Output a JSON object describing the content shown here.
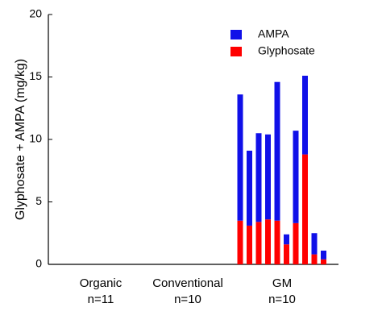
{
  "chart_data": {
    "type": "stacked-bar",
    "y_label": "Glyphosate + AMPA (mg/kg)",
    "groups": [
      {
        "label": "Organic",
        "count": "n=11"
      },
      {
        "label": "Conventional",
        "count": "n=10"
      },
      {
        "label": "GM",
        "count": "n=10"
      }
    ],
    "categories": [
      null,
      null,
      null,
      null,
      null,
      null,
      null,
      null,
      null,
      null
    ],
    "series": [
      {
        "name": "Glyphosate",
        "color": "#ff0000",
        "values": [
          3.5,
          3.1,
          3.4,
          3.6,
          3.5,
          1.6,
          3.3,
          8.8,
          0.8,
          0.4
        ]
      },
      {
        "name": "AMPA",
        "color": "#1010e8",
        "values": [
          10.1,
          6.0,
          7.1,
          6.8,
          11.1,
          0.8,
          7.4,
          6.3,
          1.7,
          0.7
        ]
      }
    ],
    "ylim": [
      0,
      20
    ],
    "yticks": [
      0,
      5,
      10,
      15,
      20
    ]
  }
}
